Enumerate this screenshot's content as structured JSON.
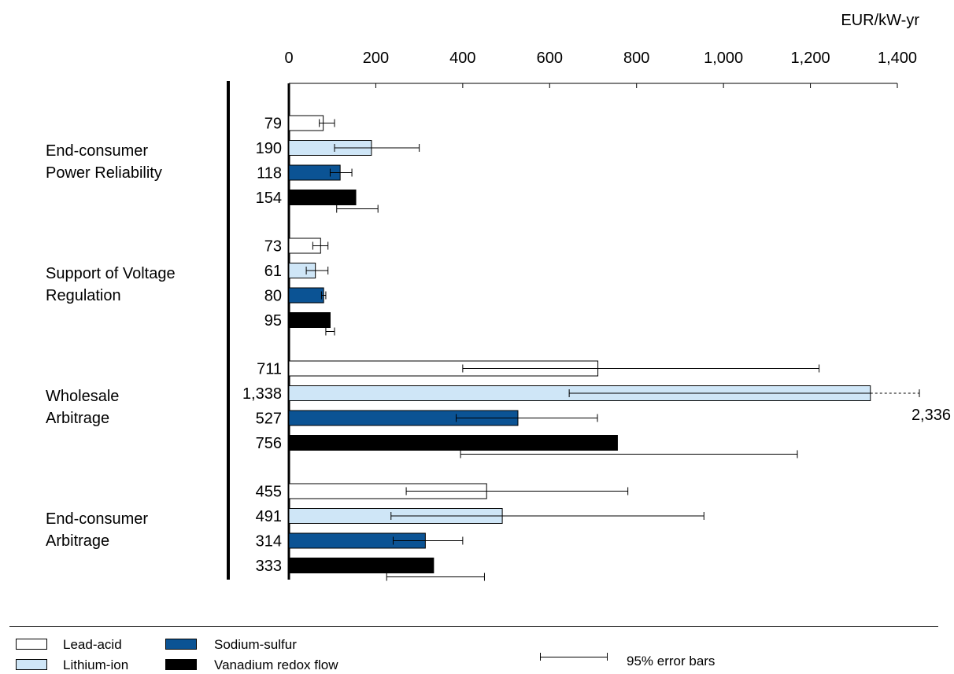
{
  "chart_data": {
    "type": "bar",
    "orientation": "horizontal",
    "unit_label": "EUR/kW-yr",
    "x_ticks": [
      "0",
      "200",
      "400",
      "600",
      "800",
      "1,000",
      "1,200",
      "1,400"
    ],
    "xlim": [
      0,
      1400
    ],
    "groups": [
      {
        "label": "End-consumer\nPower Reliability"
      },
      {
        "label": "Support of Voltage\nRegulation"
      },
      {
        "label": "Wholesale\nArbitrage"
      },
      {
        "label": "End-consumer\nArbitrage"
      }
    ],
    "series": [
      {
        "name": "Lead-acid",
        "color": "#ffffff",
        "values": [
          79,
          73,
          711,
          455
        ],
        "value_labels": [
          "79",
          "73",
          "711",
          "455"
        ],
        "error_low": [
          70,
          55,
          400,
          270
        ],
        "error_high": [
          105,
          90,
          1220,
          780
        ]
      },
      {
        "name": "Lithium-ion",
        "color": "#cfe6f7",
        "values": [
          190,
          61,
          1338,
          491
        ],
        "value_labels": [
          "190",
          "61",
          "1,338",
          "491"
        ],
        "error_low": [
          105,
          40,
          645,
          235
        ],
        "error_high": [
          300,
          90,
          2336,
          955
        ]
      },
      {
        "name": "Sodium-sulfur",
        "color": "#0b5394",
        "values": [
          118,
          80,
          527,
          314
        ],
        "value_labels": [
          "118",
          "80",
          "527",
          "314"
        ],
        "error_low": [
          95,
          75,
          385,
          240
        ],
        "error_high": [
          145,
          85,
          710,
          400
        ]
      },
      {
        "name": "Vanadium redox flow",
        "color": "#000000",
        "values": [
          154,
          95,
          756,
          333
        ],
        "value_labels": [
          "154",
          "95",
          "756",
          "333"
        ],
        "error_low": [
          110,
          85,
          395,
          225
        ],
        "error_high": [
          205,
          105,
          1170,
          450
        ]
      }
    ],
    "overflow_note": "2,336",
    "error_bar_legend": "95% error bars",
    "legend_placement": "bottom",
    "grid": false
  }
}
